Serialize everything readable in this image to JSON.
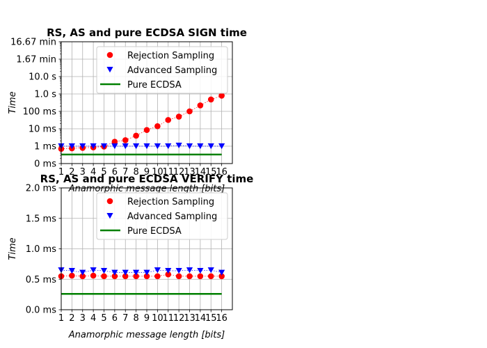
{
  "chart_data": [
    {
      "type": "scatter",
      "title": "RS, AS and pure ECDSA SIGN time",
      "xlabel": "Anamorphic message length [bits]",
      "ylabel": "Time",
      "yscale": "log",
      "x_ticks": [
        "1",
        "2",
        "3",
        "4",
        "5",
        "6",
        "7",
        "8",
        "9",
        "10",
        "11",
        "12",
        "13",
        "14",
        "15",
        "16"
      ],
      "y_ticks": [
        "0 ms",
        "1 ms",
        "10 ms",
        "100 ms",
        "1.0 s",
        "10.0 s",
        "1.67 min",
        "16.67 min"
      ],
      "y_tick_values_ms": [
        0.1,
        1,
        10,
        100,
        1000,
        10000,
        100000,
        1000000
      ],
      "ylim_ms": [
        0.1,
        1000000
      ],
      "grid": true,
      "legend_position": "upper-right",
      "series": [
        {
          "name": "Rejection Sampling",
          "marker": "circle",
          "line_style": "dotted",
          "color": "#ff0000",
          "x": [
            1,
            2,
            3,
            4,
            5,
            6,
            7,
            8,
            9,
            10,
            11,
            12,
            13,
            14,
            15,
            16
          ],
          "y_ms": [
            0.7,
            0.75,
            0.8,
            0.85,
            0.95,
            1.8,
            2.2,
            4.0,
            8.5,
            14,
            32,
            50,
            100,
            220,
            480,
            800
          ]
        },
        {
          "name": "Advanced Sampling",
          "marker": "triangle-down",
          "line_style": "dotted",
          "color": "#0000ff",
          "x": [
            1,
            2,
            3,
            4,
            5,
            6,
            7,
            8,
            9,
            10,
            11,
            12,
            13,
            14,
            15,
            16
          ],
          "y_ms": [
            1.0,
            1.0,
            1.0,
            1.0,
            1.0,
            1.0,
            1.0,
            1.0,
            1.0,
            1.0,
            1.0,
            1.1,
            1.0,
            1.0,
            1.0,
            1.0
          ]
        },
        {
          "name": "Pure ECDSA",
          "marker": "none",
          "line_style": "solid",
          "color": "#008000",
          "x": [
            1,
            16
          ],
          "y_ms": [
            0.33,
            0.33
          ]
        }
      ]
    },
    {
      "type": "scatter",
      "title": "RS, AS and pure ECDSA VERIFY time",
      "xlabel": "Anamorphic message length [bits]",
      "ylabel": "Time",
      "yscale": "linear",
      "x_ticks": [
        "1",
        "2",
        "3",
        "4",
        "5",
        "6",
        "7",
        "8",
        "9",
        "10",
        "11",
        "12",
        "13",
        "14",
        "15",
        "16"
      ],
      "y_ticks": [
        "0.0 ms",
        "0.5 ms",
        "1.0 ms",
        "1.5 ms",
        "2.0 ms"
      ],
      "y_tick_values_ms": [
        0,
        0.5,
        1.0,
        1.5,
        2.0
      ],
      "ylim_ms": [
        0,
        2.0
      ],
      "grid": true,
      "legend_position": "upper-right",
      "series": [
        {
          "name": "Rejection Sampling",
          "marker": "circle",
          "line_style": "dotted",
          "color": "#ff0000",
          "x": [
            1,
            2,
            3,
            4,
            5,
            6,
            7,
            8,
            9,
            10,
            11,
            12,
            13,
            14,
            15,
            16
          ],
          "y_ms": [
            0.55,
            0.56,
            0.55,
            0.56,
            0.55,
            0.55,
            0.55,
            0.55,
            0.55,
            0.55,
            0.58,
            0.55,
            0.55,
            0.55,
            0.55,
            0.55
          ]
        },
        {
          "name": "Advanced Sampling",
          "marker": "triangle-down",
          "line_style": "dotted",
          "color": "#0000ff",
          "x": [
            1,
            2,
            3,
            4,
            5,
            6,
            7,
            8,
            9,
            10,
            11,
            12,
            13,
            14,
            15,
            16
          ],
          "y_ms": [
            0.65,
            0.64,
            0.61,
            0.65,
            0.64,
            0.61,
            0.61,
            0.61,
            0.61,
            0.65,
            0.64,
            0.64,
            0.65,
            0.64,
            0.65,
            0.61
          ]
        },
        {
          "name": "Pure ECDSA",
          "marker": "none",
          "line_style": "solid",
          "color": "#008000",
          "x": [
            1,
            16
          ],
          "y_ms": [
            0.26,
            0.26
          ]
        }
      ]
    }
  ]
}
